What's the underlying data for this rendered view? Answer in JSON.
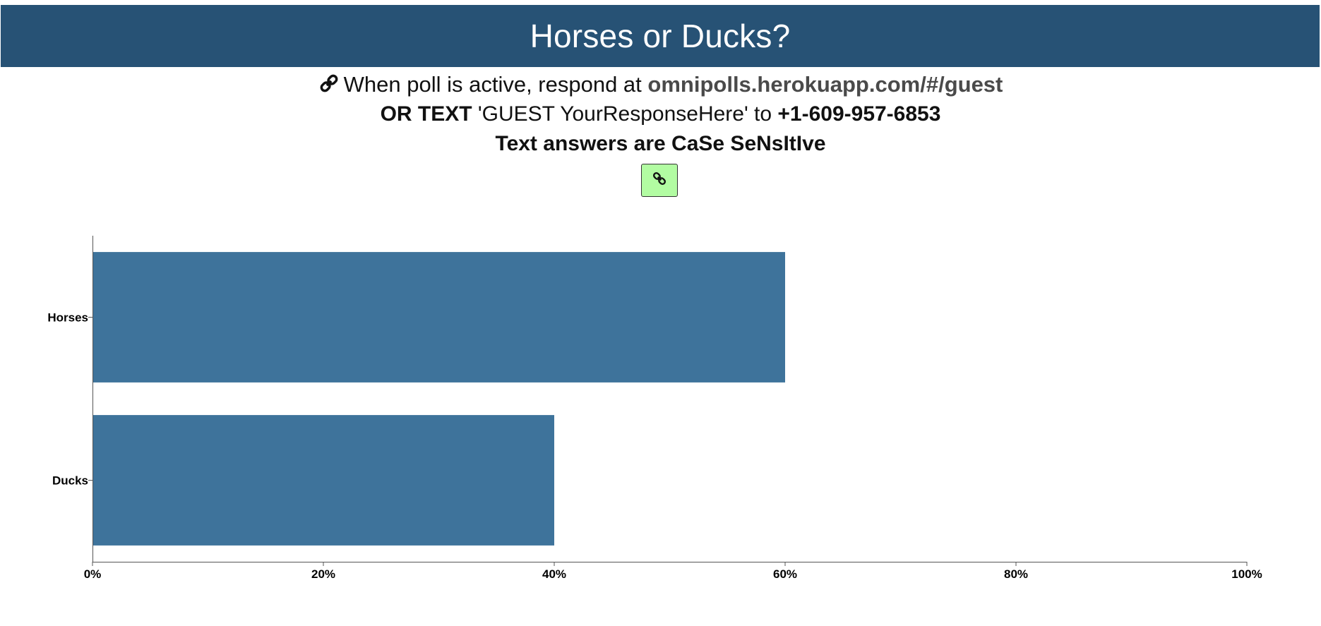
{
  "header": {
    "title": "Horses or Ducks?"
  },
  "instructions": {
    "line1_prefix": "When poll is active, respond at ",
    "url": "omnipolls.herokuapp.com/#/guest",
    "line2_or_text": "OR TEXT",
    "line2_middle": " 'GUEST YourResponseHere' to ",
    "phone": "+1-609-957-6853",
    "line3": "Text answers are CaSe SeNsItIve"
  },
  "link_button": {
    "icon": "link-icon",
    "color": "#b2fca2"
  },
  "chart_data": {
    "type": "bar",
    "orientation": "horizontal",
    "categories": [
      "Horses",
      "Ducks"
    ],
    "values": [
      60,
      40
    ],
    "xlim": [
      0,
      100
    ],
    "x_ticks": [
      0,
      20,
      40,
      60,
      80,
      100
    ],
    "x_tick_labels": [
      "0%",
      "20%",
      "40%",
      "60%",
      "80%",
      "100%"
    ],
    "bar_color": "#3e739b",
    "title": "",
    "xlabel": "",
    "ylabel": ""
  }
}
